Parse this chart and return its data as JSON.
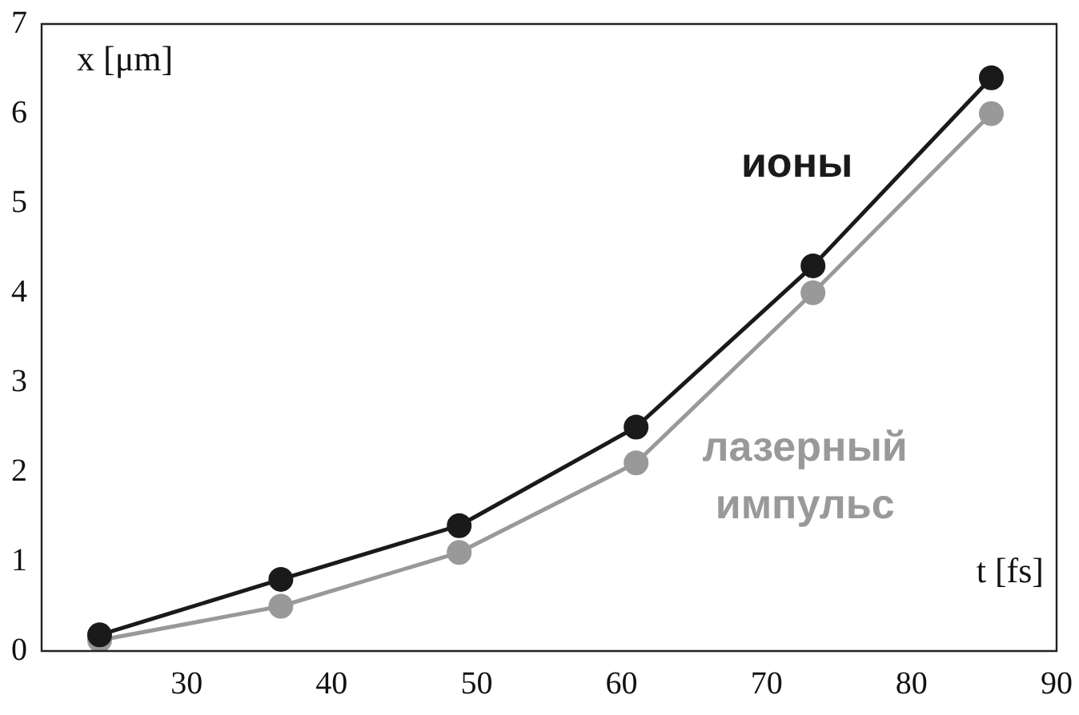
{
  "chart_data": {
    "type": "line",
    "xlabel": "t [fs]",
    "ylabel": "x [μm]",
    "x": [
      24,
      36.5,
      48.8,
      61,
      73.2,
      85.5
    ],
    "series": [
      {
        "name": "ионы",
        "color": "#1a1a1a",
        "values": [
          0.18,
          0.8,
          1.4,
          2.5,
          4.3,
          6.4
        ]
      },
      {
        "name": "лазерный импульс",
        "color": "#999999",
        "values": [
          0.12,
          0.5,
          1.1,
          2.1,
          4.0,
          6.0
        ]
      }
    ],
    "xlim": [
      20,
      90
    ],
    "xticks": [
      30,
      40,
      50,
      60,
      70,
      80,
      90
    ],
    "ylim": [
      0,
      7
    ],
    "yticks": [
      0,
      1,
      2,
      3,
      4,
      5,
      6,
      7
    ],
    "grid": false,
    "legend": false,
    "marker": "circle",
    "line_style": "solid"
  }
}
